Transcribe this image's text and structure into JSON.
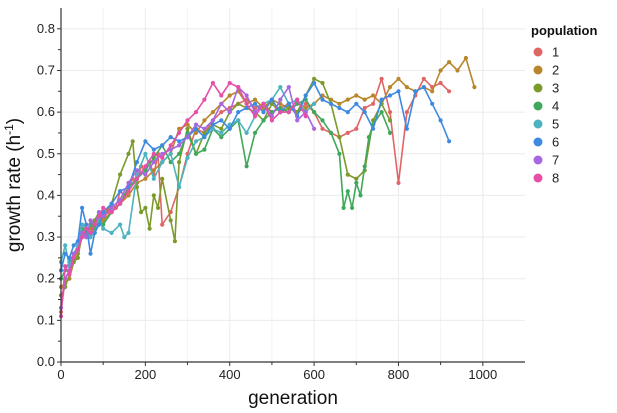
{
  "chart_data": {
    "type": "line",
    "title": "",
    "xlabel": "generation",
    "ylabel": "growth rate (h",
    "ylabel_sup": "-1",
    "ylabel_close": ")",
    "xlim": [
      0,
      1100
    ],
    "ylim": [
      0,
      0.85
    ],
    "x_ticks": [
      0,
      200,
      400,
      600,
      800,
      1000
    ],
    "y_ticks": [
      0.0,
      0.1,
      0.2,
      0.3,
      0.4,
      0.5,
      0.6,
      0.7,
      0.8
    ],
    "x_tick_labels": [
      "0",
      "200",
      "400",
      "600",
      "800",
      "1000"
    ],
    "y_tick_labels": [
      "0.0",
      "0.1",
      "0.2",
      "0.3",
      "0.4",
      "0.5",
      "0.6",
      "0.7",
      "0.8"
    ],
    "grid": true,
    "legend": {
      "title": "population",
      "placement": "right"
    },
    "series": [
      {
        "name": "1",
        "color": "#e06666",
        "x": [
          0,
          10,
          20,
          30,
          40,
          50,
          60,
          70,
          80,
          90,
          100,
          110,
          120,
          130,
          140,
          150,
          160,
          170,
          180,
          190,
          200,
          210,
          220,
          230,
          240,
          260,
          280,
          300,
          320,
          340,
          360,
          380,
          400,
          420,
          440,
          460,
          480,
          500,
          520,
          540,
          560,
          580,
          600,
          620,
          640,
          660,
          680,
          700,
          720,
          740,
          760,
          780,
          800,
          820,
          840,
          860,
          880,
          900,
          920
        ],
        "y": [
          0.12,
          0.2,
          0.22,
          0.25,
          0.27,
          0.3,
          0.32,
          0.3,
          0.33,
          0.35,
          0.34,
          0.36,
          0.38,
          0.37,
          0.41,
          0.4,
          0.42,
          0.44,
          0.43,
          0.47,
          0.46,
          0.48,
          0.45,
          0.5,
          0.33,
          0.36,
          0.42,
          0.5,
          0.56,
          0.55,
          0.58,
          0.6,
          0.61,
          0.62,
          0.63,
          0.61,
          0.62,
          0.6,
          0.61,
          0.62,
          0.6,
          0.62,
          0.6,
          0.56,
          0.55,
          0.54,
          0.55,
          0.56,
          0.61,
          0.62,
          0.68,
          0.6,
          0.43,
          0.6,
          0.64,
          0.68,
          0.66,
          0.67,
          0.65
        ]
      },
      {
        "name": "2",
        "color": "#b8862b",
        "x": [
          0,
          10,
          20,
          30,
          40,
          50,
          60,
          70,
          80,
          90,
          100,
          120,
          140,
          160,
          180,
          200,
          220,
          240,
          260,
          280,
          300,
          320,
          340,
          360,
          380,
          400,
          420,
          440,
          460,
          480,
          500,
          520,
          540,
          560,
          580,
          600,
          620,
          640,
          660,
          680,
          700,
          720,
          740,
          760,
          780,
          800,
          820,
          840,
          860,
          880,
          900,
          920,
          940,
          960,
          980
        ],
        "y": [
          0.18,
          0.19,
          0.2,
          0.24,
          0.26,
          0.3,
          0.31,
          0.32,
          0.33,
          0.35,
          0.34,
          0.36,
          0.38,
          0.4,
          0.43,
          0.44,
          0.46,
          0.48,
          0.5,
          0.56,
          0.57,
          0.55,
          0.58,
          0.6,
          0.62,
          0.64,
          0.65,
          0.62,
          0.63,
          0.61,
          0.63,
          0.62,
          0.61,
          0.6,
          0.61,
          0.62,
          0.64,
          0.63,
          0.62,
          0.63,
          0.64,
          0.63,
          0.64,
          0.62,
          0.66,
          0.68,
          0.66,
          0.65,
          0.66,
          0.65,
          0.7,
          0.72,
          0.7,
          0.73,
          0.66
        ]
      },
      {
        "name": "3",
        "color": "#7a9a2a",
        "x": [
          0,
          10,
          20,
          30,
          40,
          50,
          60,
          70,
          80,
          90,
          100,
          120,
          140,
          160,
          170,
          180,
          190,
          200,
          210,
          220,
          230,
          240,
          260,
          270,
          280,
          300,
          320,
          340,
          360,
          380,
          400,
          420,
          440,
          460,
          480,
          500,
          520,
          540,
          560,
          580,
          600,
          620,
          640,
          660,
          680,
          700,
          720,
          740,
          760,
          780
        ],
        "y": [
          0.16,
          0.18,
          0.21,
          0.24,
          0.25,
          0.31,
          0.3,
          0.33,
          0.34,
          0.36,
          0.35,
          0.38,
          0.45,
          0.5,
          0.53,
          0.42,
          0.36,
          0.37,
          0.32,
          0.4,
          0.37,
          0.44,
          0.34,
          0.29,
          0.48,
          0.56,
          0.5,
          0.55,
          0.57,
          0.56,
          0.6,
          0.62,
          0.61,
          0.6,
          0.58,
          0.62,
          0.6,
          0.61,
          0.6,
          0.64,
          0.68,
          0.67,
          0.62,
          0.54,
          0.45,
          0.44,
          0.46,
          0.58,
          0.62,
          0.58
        ]
      },
      {
        "name": "4",
        "color": "#3fa85a",
        "x": [
          0,
          10,
          20,
          30,
          40,
          50,
          60,
          70,
          80,
          90,
          100,
          120,
          140,
          160,
          180,
          200,
          220,
          240,
          260,
          280,
          300,
          320,
          340,
          360,
          380,
          400,
          420,
          440,
          460,
          480,
          500,
          520,
          540,
          560,
          580,
          600,
          620,
          640,
          660,
          670,
          680,
          690,
          700,
          710,
          720,
          730,
          740,
          760,
          780
        ],
        "y": [
          0.2,
          0.22,
          0.24,
          0.26,
          0.27,
          0.32,
          0.31,
          0.33,
          0.32,
          0.34,
          0.33,
          0.36,
          0.38,
          0.42,
          0.44,
          0.46,
          0.49,
          0.52,
          0.48,
          0.5,
          0.55,
          0.5,
          0.51,
          0.56,
          0.54,
          0.56,
          0.58,
          0.47,
          0.55,
          0.58,
          0.6,
          0.61,
          0.6,
          0.62,
          0.63,
          0.6,
          0.58,
          0.55,
          0.5,
          0.37,
          0.41,
          0.37,
          0.43,
          0.4,
          0.47,
          0.54,
          0.57,
          0.6,
          0.55
        ]
      },
      {
        "name": "5",
        "color": "#4db3c0",
        "x": [
          0,
          10,
          20,
          30,
          40,
          50,
          60,
          70,
          80,
          90,
          100,
          120,
          140,
          150,
          160,
          180,
          200,
          220,
          240,
          260,
          280,
          300,
          320,
          340,
          360,
          380,
          400,
          420,
          440,
          460,
          480,
          500,
          520,
          540,
          560,
          580,
          600
        ],
        "y": [
          0.24,
          0.28,
          0.23,
          0.26,
          0.28,
          0.33,
          0.32,
          0.3,
          0.31,
          0.34,
          0.32,
          0.31,
          0.33,
          0.3,
          0.31,
          0.45,
          0.5,
          0.44,
          0.48,
          0.5,
          0.42,
          0.49,
          0.53,
          0.54,
          0.56,
          0.55,
          0.57,
          0.58,
          0.55,
          0.59,
          0.62,
          0.63,
          0.66,
          0.62,
          0.63,
          0.6,
          0.62
        ]
      },
      {
        "name": "6",
        "color": "#3d8ae0",
        "x": [
          0,
          10,
          20,
          30,
          40,
          50,
          60,
          70,
          80,
          90,
          100,
          120,
          140,
          160,
          180,
          200,
          220,
          240,
          260,
          280,
          300,
          320,
          340,
          360,
          380,
          400,
          420,
          440,
          460,
          480,
          500,
          520,
          540,
          560,
          580,
          600,
          620,
          640,
          660,
          680,
          700,
          720,
          740,
          760,
          780,
          800,
          820,
          840,
          860,
          880,
          900,
          920
        ],
        "y": [
          0.22,
          0.26,
          0.25,
          0.28,
          0.29,
          0.37,
          0.33,
          0.26,
          0.31,
          0.33,
          0.36,
          0.38,
          0.41,
          0.42,
          0.48,
          0.53,
          0.51,
          0.52,
          0.54,
          0.53,
          0.54,
          0.56,
          0.54,
          0.57,
          0.58,
          0.56,
          0.6,
          0.61,
          0.62,
          0.6,
          0.63,
          0.6,
          0.62,
          0.59,
          0.64,
          0.67,
          0.63,
          0.62,
          0.61,
          0.6,
          0.62,
          0.6,
          0.56,
          0.63,
          0.64,
          0.65,
          0.56,
          0.65,
          0.66,
          0.62,
          0.58,
          0.53
        ]
      },
      {
        "name": "7",
        "color": "#a667e0",
        "x": [
          0,
          10,
          20,
          30,
          40,
          50,
          60,
          70,
          80,
          90,
          100,
          120,
          140,
          160,
          180,
          200,
          220,
          240,
          260,
          280,
          300,
          320,
          340,
          360,
          380,
          400,
          420,
          440,
          460,
          480,
          500,
          520,
          540,
          560,
          580,
          600
        ],
        "y": [
          0.13,
          0.2,
          0.22,
          0.26,
          0.27,
          0.31,
          0.3,
          0.34,
          0.33,
          0.36,
          0.35,
          0.37,
          0.39,
          0.43,
          0.46,
          0.45,
          0.48,
          0.5,
          0.51,
          0.52,
          0.54,
          0.57,
          0.56,
          0.58,
          0.62,
          0.6,
          0.66,
          0.64,
          0.6,
          0.62,
          0.59,
          0.63,
          0.66,
          0.58,
          0.6,
          0.56
        ]
      },
      {
        "name": "8",
        "color": "#e64fa8",
        "x": [
          0,
          10,
          20,
          30,
          40,
          50,
          60,
          70,
          80,
          90,
          100,
          120,
          140,
          160,
          180,
          200,
          220,
          240,
          260,
          280,
          300,
          320,
          340,
          360,
          380,
          400,
          420,
          440,
          460,
          480,
          500,
          520,
          540,
          560,
          580
        ],
        "y": [
          0.11,
          0.23,
          0.21,
          0.25,
          0.27,
          0.3,
          0.32,
          0.31,
          0.33,
          0.35,
          0.37,
          0.36,
          0.38,
          0.41,
          0.44,
          0.47,
          0.5,
          0.49,
          0.52,
          0.55,
          0.58,
          0.6,
          0.63,
          0.67,
          0.64,
          0.67,
          0.66,
          0.62,
          0.59,
          0.62,
          0.58,
          0.6,
          0.6,
          0.63,
          0.59
        ]
      }
    ]
  }
}
